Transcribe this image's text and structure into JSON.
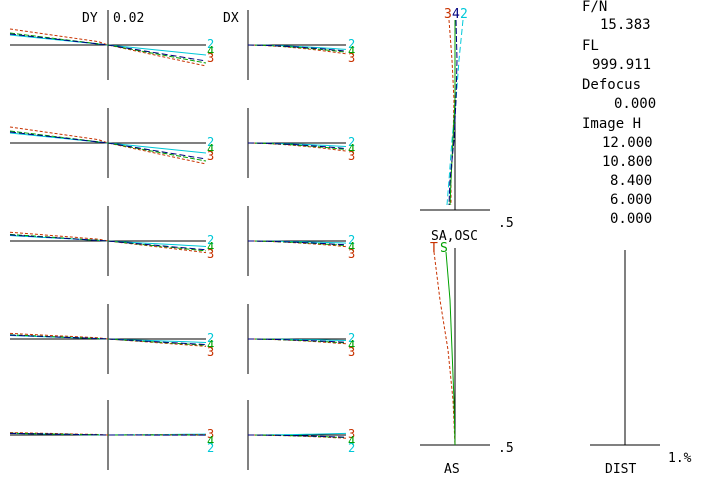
{
  "header": {
    "dy_label": "DY",
    "dy_scale": "0.02",
    "dx_label": "DX"
  },
  "info_panel": {
    "fn_label": "F/N",
    "fn_value": "15.383",
    "fl_label": "FL",
    "fl_value": "999.911",
    "defocus_label": "Defocus",
    "defocus_value": "0.000",
    "image_h_label": "Image H",
    "image_h_values": [
      "12.000",
      "10.800",
      "8.400",
      "6.000",
      "0.000"
    ]
  },
  "astig_plot": {
    "scale_top": ".5",
    "title": "SA,OSC",
    "t_label": "T",
    "s_label": "S",
    "scale_bottom": ".5",
    "xlabel": "AS",
    "wavelength_labels_top": [
      "3",
      "4",
      "2"
    ]
  },
  "distortion_plot": {
    "xlabel": "DIST",
    "scale": "1.%"
  },
  "ray_fans": {
    "rows": 5,
    "end_labels": [
      [
        "2",
        "4",
        "3"
      ],
      [
        "2",
        "4",
        "3"
      ],
      [
        "2",
        "4",
        "3"
      ],
      [
        "2",
        "4",
        "3"
      ],
      [
        "3",
        "4",
        "2"
      ]
    ]
  },
  "colors": {
    "wl2": "#00c8d8",
    "wl3": "#c83200",
    "wl4": "#00a000",
    "wl1": "#000080",
    "axis": "#000000"
  }
}
